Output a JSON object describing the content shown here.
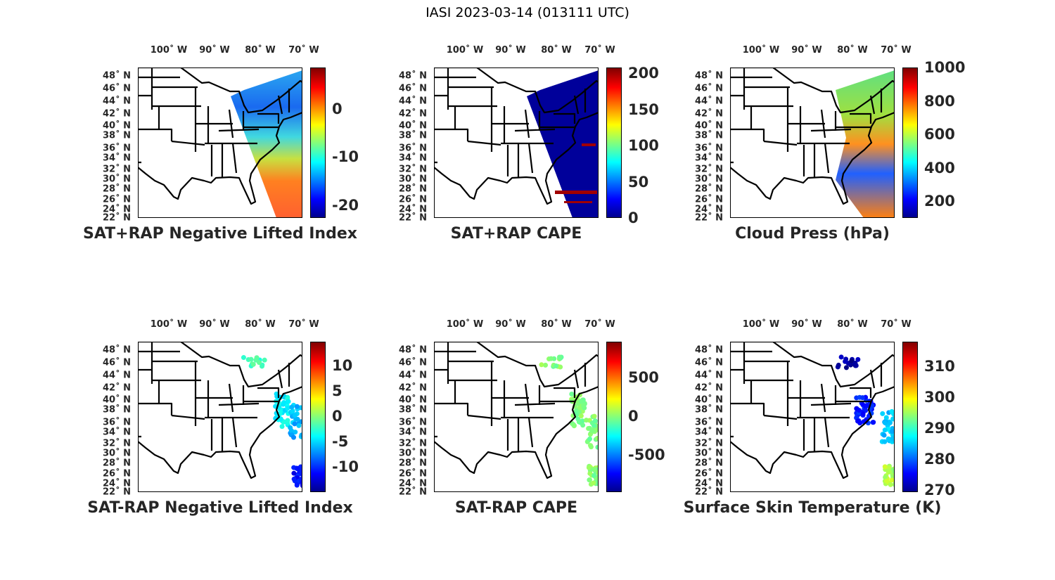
{
  "title": "IASI 2023-03-14 (013111 UTC)",
  "lon_labels": [
    "100˚ W",
    "90˚ W",
    "80˚ W",
    "70˚ W"
  ],
  "lat_labels": [
    "48˚ N",
    "46˚ N",
    "44˚ N",
    "42˚ N",
    "40˚ N",
    "38˚ N",
    "36˚ N",
    "34˚ N",
    "32˚ N",
    "30˚ N",
    "28˚ N",
    "26˚ N",
    "24˚ N",
    "22˚ N"
  ],
  "chart_data": [
    {
      "type": "map-swath",
      "title": "SAT+RAP Negative Lifted Index",
      "clim": [
        -22.7,
        8.7
      ],
      "ticks": [
        "0",
        "-10",
        "-20"
      ],
      "tick_values": [
        0,
        -10,
        -20
      ],
      "style": "li"
    },
    {
      "type": "map-swath",
      "title": "SAT+RAP CAPE",
      "clim": [
        0,
        208
      ],
      "ticks": [
        "0",
        "50",
        "100",
        "150",
        "200"
      ],
      "tick_values": [
        0,
        50,
        100,
        150,
        200
      ],
      "style": "cape"
    },
    {
      "type": "map-swath",
      "title": "Cloud Press (hPa)",
      "clim": [
        100,
        1000
      ],
      "ticks": [
        "200",
        "400",
        "600",
        "800",
        "1000"
      ],
      "tick_values": [
        200,
        400,
        600,
        800,
        1000
      ],
      "style": "cloud"
    },
    {
      "type": "map-scatter",
      "title": "SAT-RAP Negative Lifted Index",
      "clim": [
        -15,
        14.7
      ],
      "ticks": [
        "10",
        "5",
        "0",
        "-5",
        "-10"
      ],
      "tick_values": [
        10,
        5,
        0,
        -5,
        -10
      ],
      "clusters": [
        {
          "lon": -81,
          "lat": 45.8,
          "dlon": 2.5,
          "dlat": 1,
          "n": 14,
          "value": -2
        },
        {
          "lon": -75,
          "lat": 37,
          "dlon": 1.5,
          "dlat": 3,
          "n": 40,
          "value": -4
        },
        {
          "lon": -72,
          "lat": 35,
          "dlon": 1.3,
          "dlat": 3,
          "n": 30,
          "value": -6
        },
        {
          "lon": -71.5,
          "lat": 25,
          "dlon": 1.2,
          "dlat": 1.8,
          "n": 30,
          "value": -11
        }
      ]
    },
    {
      "type": "map-scatter",
      "title": "SAT-RAP CAPE",
      "clim": [
        -980,
        960
      ],
      "ticks": [
        "500",
        "0",
        "-500"
      ],
      "tick_values": [
        500,
        0,
        -500
      ],
      "clusters": [
        {
          "lon": -81,
          "lat": 45.8,
          "dlon": 2.5,
          "dlat": 1,
          "n": 14,
          "value": 0
        },
        {
          "lon": -75,
          "lat": 37,
          "dlon": 1.5,
          "dlat": 3,
          "n": 45,
          "value": 0
        },
        {
          "lon": -72,
          "lat": 33,
          "dlon": 1.3,
          "dlat": 3,
          "n": 30,
          "value": 0
        },
        {
          "lon": -71.5,
          "lat": 25,
          "dlon": 1.2,
          "dlat": 1.8,
          "n": 30,
          "value": 10
        }
      ]
    },
    {
      "type": "map-scatter",
      "title": "Surface Skin Temperature (K)",
      "clim": [
        269.3,
        318
      ],
      "ticks": [
        "310",
        "300",
        "290",
        "280",
        "270"
      ],
      "tick_values": [
        310,
        300,
        290,
        280,
        270
      ],
      "clusters": [
        {
          "lon": -81,
          "lat": 45.8,
          "dlon": 2.5,
          "dlat": 1,
          "n": 16,
          "value": 271
        },
        {
          "lon": -77,
          "lat": 37,
          "dlon": 2,
          "dlat": 2.5,
          "n": 45,
          "value": 277
        },
        {
          "lon": -72,
          "lat": 34,
          "dlon": 1.3,
          "dlat": 3,
          "n": 30,
          "value": 285
        },
        {
          "lon": -71.5,
          "lat": 25,
          "dlon": 1.2,
          "dlat": 1.8,
          "n": 30,
          "value": 296
        }
      ]
    }
  ]
}
